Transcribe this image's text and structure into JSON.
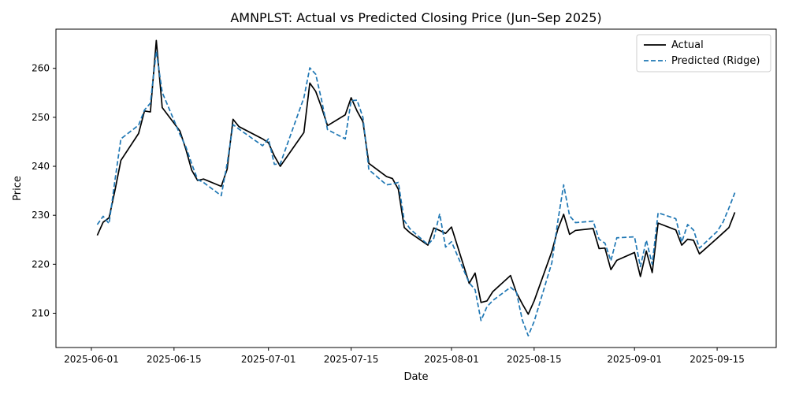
{
  "chart_data": {
    "type": "line",
    "title": "AMNPLST: Actual vs Predicted Closing Price (Jun–Sep 2025)",
    "xlabel": "Date",
    "ylabel": "Price",
    "xlim": [
      "2025-05-26",
      "2025-09-25"
    ],
    "ylim": [
      203,
      268
    ],
    "x_ticks": [
      "2025-06-01",
      "2025-06-15",
      "2025-07-01",
      "2025-07-15",
      "2025-08-01",
      "2025-08-15",
      "2025-09-01",
      "2025-09-15"
    ],
    "y_ticks": [
      210,
      220,
      230,
      240,
      250,
      260
    ],
    "grid": false,
    "legend_position": "top-right",
    "x": [
      "2025-06-02",
      "2025-06-03",
      "2025-06-04",
      "2025-06-05",
      "2025-06-06",
      "2025-06-09",
      "2025-06-10",
      "2025-06-11",
      "2025-06-12",
      "2025-06-13",
      "2025-06-16",
      "2025-06-17",
      "2025-06-18",
      "2025-06-19",
      "2025-06-20",
      "2025-06-23",
      "2025-06-24",
      "2025-06-25",
      "2025-06-26",
      "2025-06-30",
      "2025-07-01",
      "2025-07-02",
      "2025-07-03",
      "2025-07-07",
      "2025-07-08",
      "2025-07-09",
      "2025-07-10",
      "2025-07-11",
      "2025-07-14",
      "2025-07-15",
      "2025-07-16",
      "2025-07-17",
      "2025-07-18",
      "2025-07-21",
      "2025-07-22",
      "2025-07-23",
      "2025-07-24",
      "2025-07-25",
      "2025-07-28",
      "2025-07-29",
      "2025-07-30",
      "2025-07-31",
      "2025-08-01",
      "2025-08-04",
      "2025-08-05",
      "2025-08-06",
      "2025-08-07",
      "2025-08-08",
      "2025-08-11",
      "2025-08-12",
      "2025-08-13",
      "2025-08-14",
      "2025-08-15",
      "2025-08-18",
      "2025-08-19",
      "2025-08-20",
      "2025-08-21",
      "2025-08-22",
      "2025-08-25",
      "2025-08-26",
      "2025-08-27",
      "2025-08-28",
      "2025-08-29",
      "2025-09-01",
      "2025-09-02",
      "2025-09-03",
      "2025-09-04",
      "2025-09-05",
      "2025-09-08",
      "2025-09-09",
      "2025-09-10",
      "2025-09-11",
      "2025-09-12",
      "2025-09-15",
      "2025-09-16",
      "2025-09-17",
      "2025-09-18"
    ],
    "series": [
      {
        "name": "Actual",
        "color": "#000000",
        "style": "solid",
        "values": [
          225.9,
          228.6,
          229.5,
          235.1,
          241.2,
          246.7,
          251.3,
          251.1,
          265.7,
          252.0,
          247.2,
          243.5,
          239.2,
          237.1,
          237.4,
          235.9,
          239.4,
          249.6,
          248.1,
          245.6,
          244.8,
          242.1,
          240.0,
          246.9,
          257.0,
          255.3,
          252.0,
          248.3,
          250.5,
          254.0,
          251.3,
          249.1,
          240.6,
          237.9,
          237.5,
          235.3,
          227.5,
          226.4,
          223.9,
          227.4,
          226.9,
          226.3,
          227.6,
          216.1,
          218.2,
          212.2,
          212.5,
          214.4,
          217.7,
          214.2,
          211.9,
          209.8,
          212.5,
          222.6,
          227.1,
          230.2,
          226.1,
          226.9,
          227.3,
          223.2,
          223.3,
          218.9,
          220.8,
          222.4,
          217.5,
          222.7,
          218.3,
          228.4,
          227.0,
          223.9,
          225.1,
          224.9,
          222.1,
          225.3,
          226.4,
          227.5,
          230.6
        ]
      },
      {
        "name": "Predicted (Ridge)",
        "color": "#1f77b4",
        "style": "dashed",
        "values": [
          228.1,
          229.8,
          228.3,
          237.2,
          245.6,
          248.4,
          251.5,
          252.9,
          263.5,
          255.1,
          246.5,
          244.0,
          240.5,
          237.3,
          236.7,
          234.0,
          240.6,
          248.5,
          247.6,
          244.2,
          245.6,
          240.4,
          240.5,
          254.0,
          260.1,
          258.8,
          253.5,
          247.5,
          245.6,
          253.4,
          253.5,
          250.0,
          239.3,
          236.2,
          236.4,
          236.7,
          228.9,
          227.2,
          224.0,
          225.3,
          230.3,
          223.5,
          224.6,
          216.2,
          214.8,
          208.5,
          211.3,
          212.6,
          215.3,
          214.3,
          208.6,
          205.4,
          208.3,
          220.3,
          228.7,
          236.2,
          229.9,
          228.5,
          228.8,
          225.1,
          224.3,
          220.7,
          225.4,
          225.6,
          219.5,
          224.9,
          220.0,
          230.5,
          229.3,
          224.5,
          228.1,
          227.0,
          223.3,
          226.7,
          228.6,
          231.5,
          234.6
        ]
      }
    ]
  }
}
